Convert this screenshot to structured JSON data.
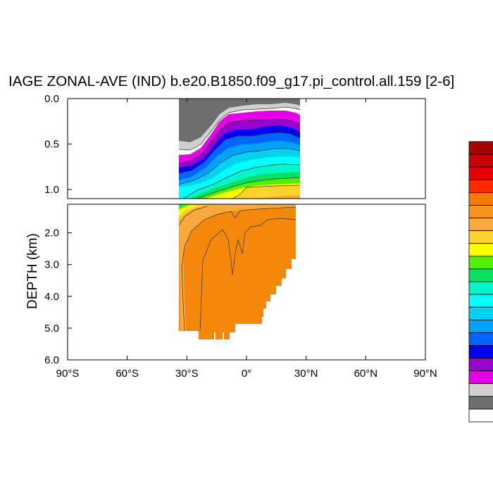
{
  "chart_data": {
    "type": "area",
    "title": "IAGE ZONAL-AVE (IND) b.e20.B1850.f09_g17.pi_control.all.159 [2-6]",
    "ylabel": "DEPTH (km)",
    "xlabel": "",
    "xlim": [
      -90,
      90
    ],
    "ylim": [
      6.0,
      0.0
    ],
    "depth_break": 1.1,
    "upper_panel_y_ticks": [
      {
        "value": 0.0,
        "label": "0.0"
      },
      {
        "value": 0.5,
        "label": "0.5"
      },
      {
        "value": 1.0,
        "label": "1.0"
      }
    ],
    "lower_panel_y_ticks": [
      {
        "value": 2.0,
        "label": "2.0"
      },
      {
        "value": 3.0,
        "label": "3.0"
      },
      {
        "value": 4.0,
        "label": "4.0"
      },
      {
        "value": 5.0,
        "label": "5.0"
      },
      {
        "value": 6.0,
        "label": "6.0"
      }
    ],
    "x_ticks": [
      {
        "value": -90,
        "label": "90°S"
      },
      {
        "value": -60,
        "label": "60°S"
      },
      {
        "value": -30,
        "label": "30°S"
      },
      {
        "value": 0,
        "label": "0°"
      },
      {
        "value": 30,
        "label": "30°N"
      },
      {
        "value": 60,
        "label": "60°N"
      },
      {
        "value": 90,
        "label": "90°N"
      }
    ],
    "data_extent_lat": [
      -34,
      25
    ],
    "colorbar_colors": [
      "#a80000",
      "#c80000",
      "#e60000",
      "#ff2800",
      "#f57b00",
      "#f7941d",
      "#faaa3c",
      "#fdd12e",
      "#ffff00",
      "#4ff000",
      "#08e060",
      "#00f5c8",
      "#00ffff",
      "#00d2f0",
      "#00a2ff",
      "#0064ff",
      "#0000f0",
      "#9600d2",
      "#e600e6",
      "#d0d0d0",
      "#6e6e6e",
      "#ffffff"
    ],
    "fill_colors": {
      "land": "#6e6e6e",
      "near_zero": "#d0d0d0",
      "deep": "#f5880a"
    }
  }
}
